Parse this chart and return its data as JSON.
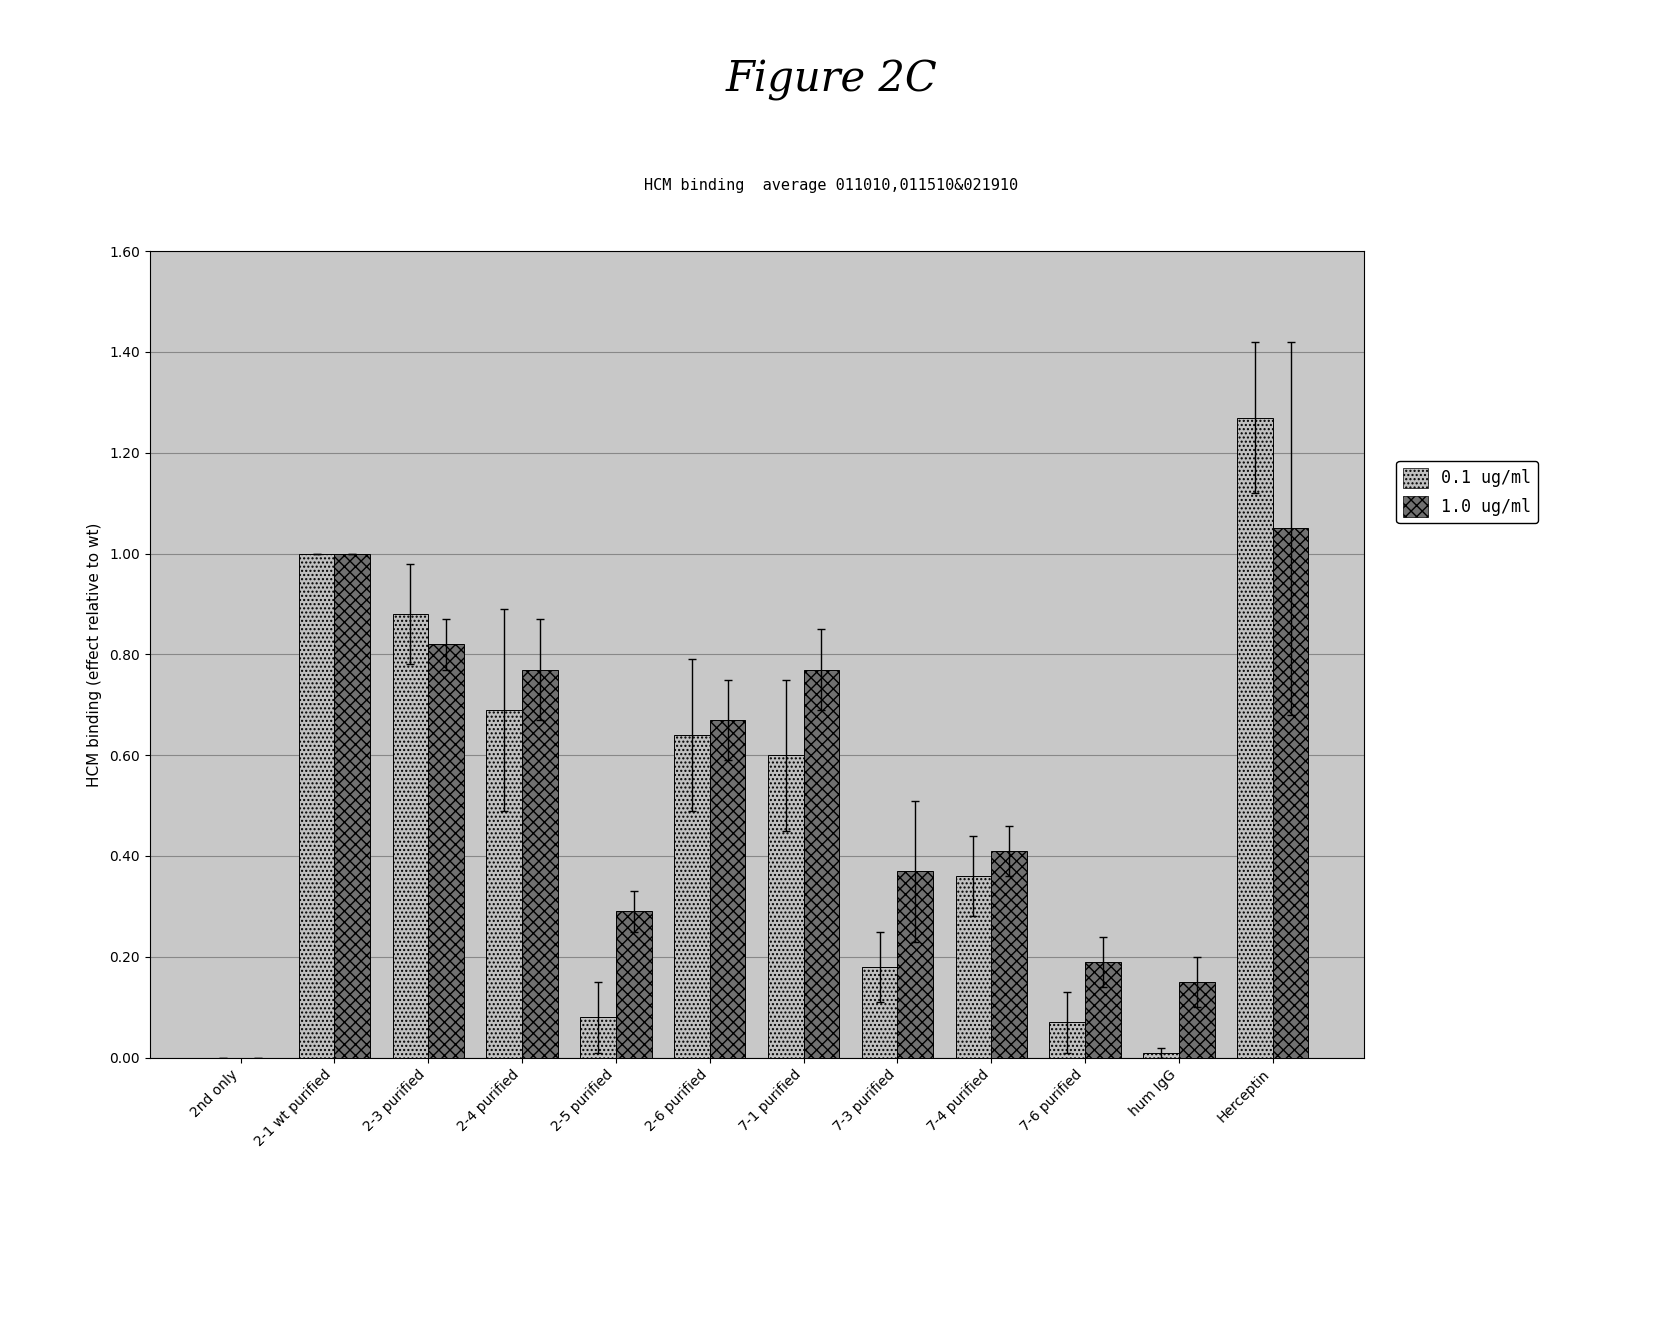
{
  "title": "Figure 2C",
  "subtitle": "HCM binding  average 011010,011510&021910",
  "ylabel": "HCM binding (effect relative to wt)",
  "ylim": [
    0.0,
    1.6
  ],
  "yticks": [
    0.0,
    0.2,
    0.4,
    0.6,
    0.8,
    1.0,
    1.2,
    1.4,
    1.6
  ],
  "categories": [
    "2nd only",
    "2-1 wt purified",
    "2-3 purified",
    "2-4 purified",
    "2-5 purified",
    "2-6 purified",
    "7-1 purified",
    "7-3 purified",
    "7-4 purified",
    "7-6 purified",
    "hum IgG",
    "Herceptin"
  ],
  "bar1_values": [
    0.0,
    1.0,
    0.88,
    0.69,
    0.08,
    0.64,
    0.6,
    0.18,
    0.36,
    0.07,
    0.01,
    1.27
  ],
  "bar2_values": [
    0.0,
    1.0,
    0.82,
    0.77,
    0.29,
    0.67,
    0.77,
    0.37,
    0.41,
    0.19,
    0.15,
    1.05
  ],
  "bar1_errors": [
    0.0,
    0.0,
    0.1,
    0.2,
    0.07,
    0.15,
    0.15,
    0.07,
    0.08,
    0.06,
    0.01,
    0.15
  ],
  "bar2_errors": [
    0.0,
    0.0,
    0.05,
    0.1,
    0.04,
    0.08,
    0.08,
    0.14,
    0.05,
    0.05,
    0.05,
    0.37
  ],
  "bar1_color": "#c0c0c0",
  "bar2_color": "#707070",
  "legend_labels": [
    "0.1 ug/ml",
    "1.0 ug/ml"
  ],
  "background_color": "#c8c8c8",
  "grid_color": "#a0a0a0",
  "bar_width": 0.38,
  "title_fontsize": 30,
  "subtitle_fontsize": 11,
  "ylabel_fontsize": 11,
  "tick_fontsize": 10,
  "legend_fontsize": 12
}
